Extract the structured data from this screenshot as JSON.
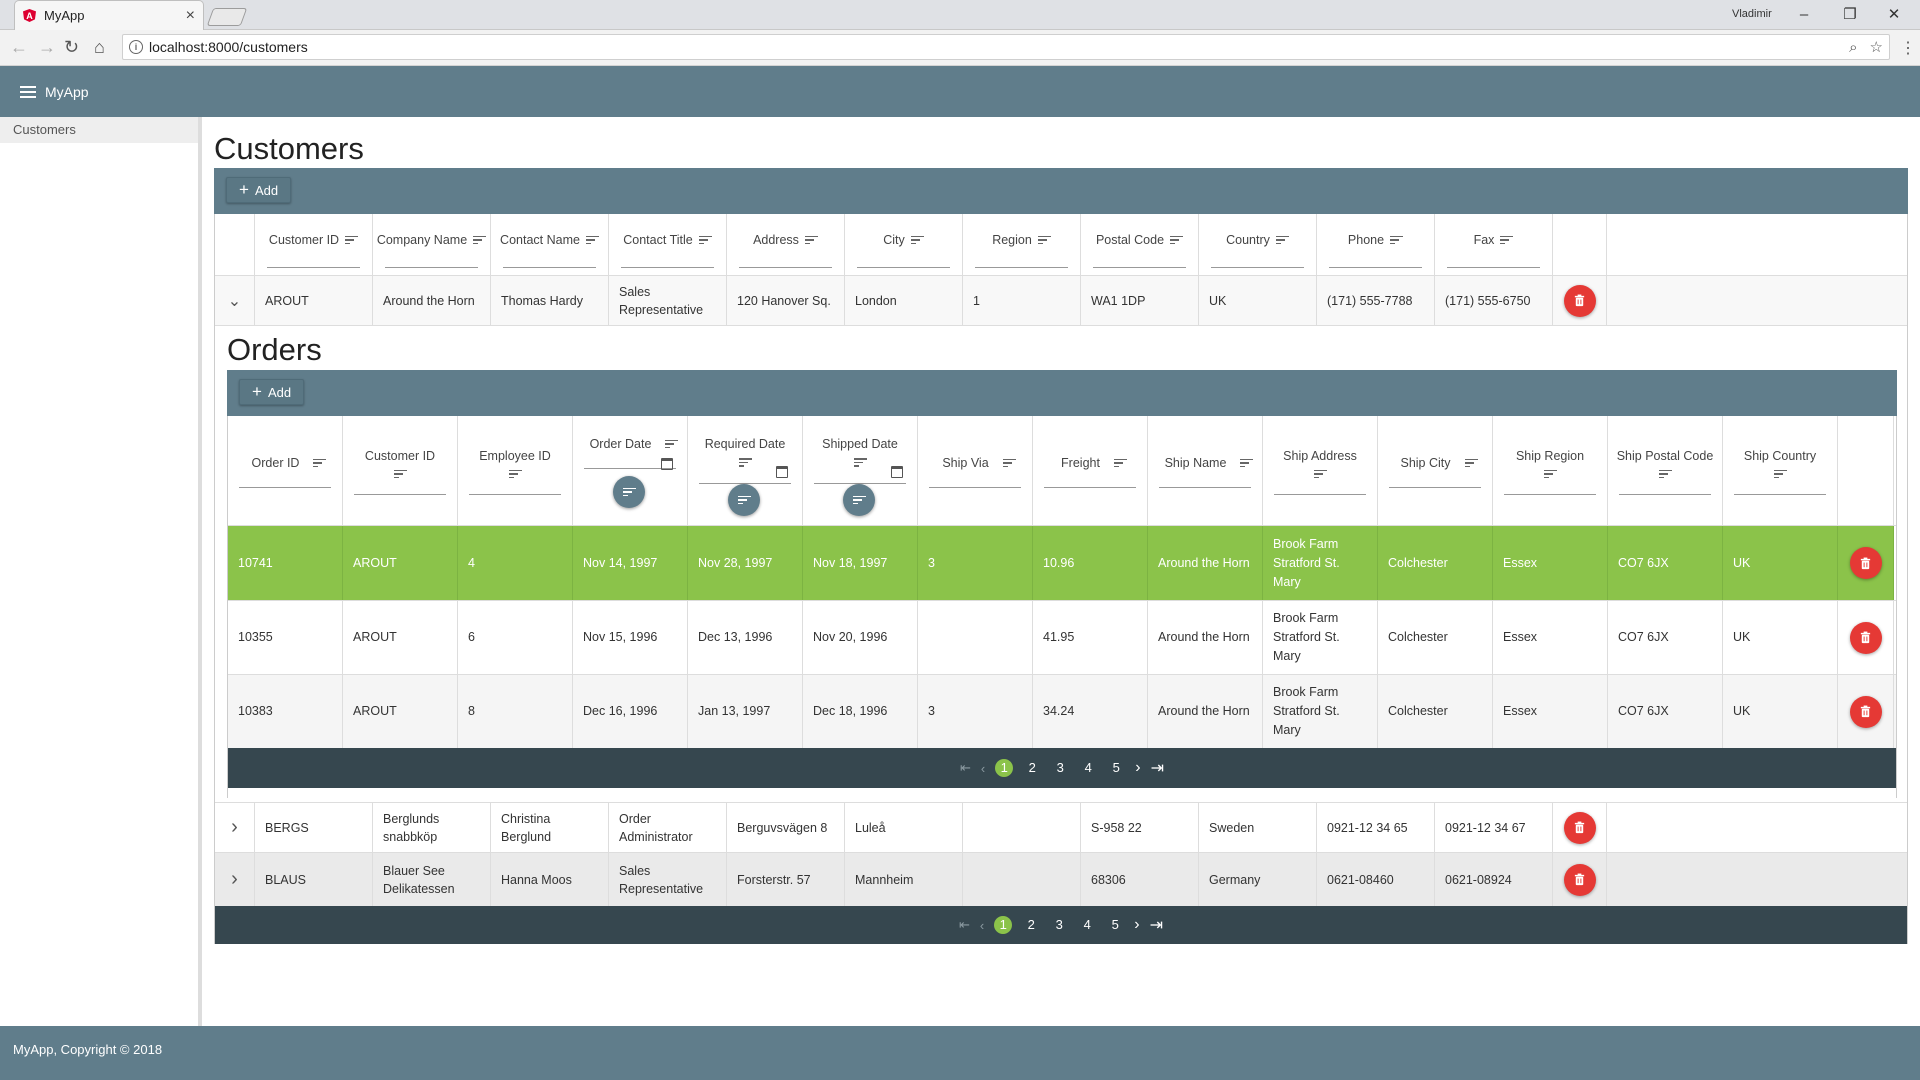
{
  "browser": {
    "tab_title": "MyApp",
    "url": "localhost:8000/customers",
    "user": "Vladimir"
  },
  "app": {
    "title": "MyApp",
    "sidebar_item": "Customers",
    "footer": "MyApp, Copyright © 2018"
  },
  "customers": {
    "title": "Customers",
    "add_label": "Add",
    "columns": [
      "Customer ID",
      "Company Name",
      "Contact Name",
      "Contact Title",
      "Address",
      "City",
      "Region",
      "Postal Code",
      "Country",
      "Phone",
      "Fax"
    ],
    "rows": [
      [
        "AROUT",
        "Around the Horn",
        "Thomas Hardy",
        "Sales Representative",
        "120 Hanover Sq.",
        "London",
        "1",
        "WA1 1DP",
        "UK",
        "(171) 555-7788",
        "(171) 555-6750"
      ],
      [
        "BERGS",
        "Berglunds snabbköp",
        "Christina Berglund",
        "Order Administrator",
        "Berguvsvägen 8",
        "Luleå",
        "",
        "S-958 22",
        "Sweden",
        "0921-12 34 65",
        "0921-12 34 67"
      ],
      [
        "BLAUS",
        "Blauer See Delikatessen",
        "Hanna Moos",
        "Sales Representative",
        "Forsterstr. 57",
        "Mannheim",
        "",
        "68306",
        "Germany",
        "0621-08460",
        "0621-08924"
      ]
    ],
    "pages": [
      "1",
      "2",
      "3",
      "4",
      "5"
    ]
  },
  "orders": {
    "title": "Orders",
    "add_label": "Add",
    "columns": [
      "Order ID",
      "Customer ID",
      "Employee ID",
      "Order Date",
      "Required Date",
      "Shipped Date",
      "Ship Via",
      "Freight",
      "Ship Name",
      "Ship Address",
      "Ship City",
      "Ship Region",
      "Ship Postal Code",
      "Ship Country"
    ],
    "rows": [
      [
        "10741",
        "AROUT",
        "4",
        "Nov 14, 1997",
        "Nov 28, 1997",
        "Nov 18, 1997",
        "3",
        "10.96",
        "Around the Horn",
        "Brook Farm Stratford St. Mary",
        "Colchester",
        "Essex",
        "CO7 6JX",
        "UK"
      ],
      [
        "10355",
        "AROUT",
        "6",
        "Nov 15, 1996",
        "Dec 13, 1996",
        "Nov 20, 1996",
        "",
        "41.95",
        "Around the Horn",
        "Brook Farm Stratford St. Mary",
        "Colchester",
        "Essex",
        "CO7 6JX",
        "UK"
      ],
      [
        "10383",
        "AROUT",
        "8",
        "Dec 16, 1996",
        "Jan 13, 1997",
        "Dec 18, 1996",
        "3",
        "34.24",
        "Around the Horn",
        "Brook Farm Stratford St. Mary",
        "Colchester",
        "Essex",
        "CO7 6JX",
        "UK"
      ]
    ],
    "pages": [
      "1",
      "2",
      "3",
      "4",
      "5"
    ]
  },
  "colors": {
    "toolbar": "#607d8b",
    "pager": "#36474f",
    "selected": "#8bc34a",
    "delete": "#e53935"
  }
}
